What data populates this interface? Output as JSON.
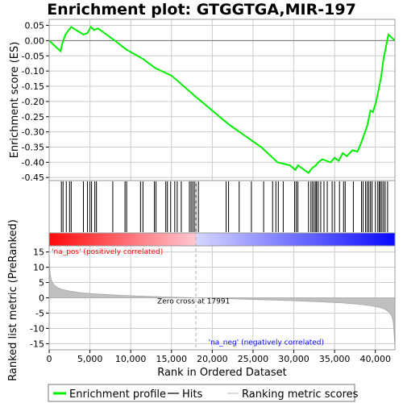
{
  "chart_data": {
    "type": "line",
    "title": "Enrichment plot: GTGGTGA,MIR-197",
    "es_panel": {
      "ylabel": "Enrichment score (ES)",
      "ylim": [
        -0.46,
        0.07
      ],
      "yticks": [
        0.05,
        0.0,
        -0.05,
        -0.1,
        -0.15,
        -0.2,
        -0.25,
        -0.3,
        -0.35,
        -0.4,
        -0.45
      ],
      "ytick_labels": [
        "0.05",
        "0.00",
        "-0.05",
        "-0.10",
        "-0.15",
        "-0.20",
        "-0.25",
        "-0.30",
        "-0.35",
        "-0.40",
        "-0.45"
      ],
      "series": [
        {
          "name": "Enrichment profile",
          "color": "#00ee00",
          "x": [
            0,
            1400,
            1600,
            2000,
            2400,
            2700,
            4200,
            4700,
            5100,
            5500,
            6000,
            7800,
            9500,
            11500,
            13000,
            15000,
            18000,
            22000,
            26000,
            28000,
            29500,
            30200,
            30500,
            31800,
            32200,
            32700,
            33000,
            33500,
            34500,
            35000,
            35500,
            36000,
            36500,
            37200,
            37800,
            38200,
            38600,
            39000,
            39400,
            39700,
            40100,
            40400,
            40700,
            41000,
            41300,
            41600,
            42400
          ],
          "y": [
            0.0,
            -0.035,
            -0.01,
            0.02,
            0.035,
            0.045,
            0.02,
            0.025,
            0.045,
            0.035,
            0.04,
            0.005,
            -0.03,
            -0.06,
            -0.09,
            -0.115,
            -0.185,
            -0.275,
            -0.35,
            -0.4,
            -0.41,
            -0.425,
            -0.41,
            -0.435,
            -0.42,
            -0.41,
            -0.4,
            -0.39,
            -0.4,
            -0.385,
            -0.395,
            -0.37,
            -0.38,
            -0.36,
            -0.365,
            -0.34,
            -0.31,
            -0.28,
            -0.23,
            -0.235,
            -0.2,
            -0.16,
            -0.12,
            -0.06,
            -0.02,
            0.02,
            0.0
          ]
        }
      ]
    },
    "hits": [
      1500,
      1700,
      2100,
      2500,
      2700,
      4200,
      4700,
      5000,
      5200,
      5600,
      5800,
      7800,
      9300,
      9500,
      11200,
      11500,
      12900,
      13100,
      14300,
      14500,
      14900,
      15400,
      15700,
      16200,
      17200,
      17400,
      17600,
      17800,
      18000,
      18300,
      21700,
      22000,
      23300,
      24800,
      26300,
      27400,
      27800,
      28100,
      28700,
      30100,
      30300,
      30500,
      31800,
      32100,
      32300,
      32500,
      32700,
      32800,
      33000,
      33300,
      33700,
      34100,
      34700,
      35000,
      35600,
      36100,
      36300,
      37300,
      38300,
      38500,
      38800,
      39000,
      39200,
      39400,
      39600,
      40000,
      40300,
      40500,
      40600,
      40800,
      41000,
      41200,
      41500
    ],
    "rank_panel": {
      "ylabel": "Ranked list metric (PreRanked)",
      "ylim": [
        -17,
        17
      ],
      "yticks": [
        15,
        10,
        5,
        0,
        -5,
        -10,
        -15
      ],
      "ytick_labels": [
        "15",
        "10",
        "5",
        "0",
        "-5",
        "-10",
        "-15"
      ],
      "profile_x": [
        0,
        100,
        300,
        600,
        1000,
        1500,
        2500,
        4000,
        6000,
        9000,
        13000,
        17991,
        22000,
        26000,
        30000,
        33000,
        36000,
        38000,
        39500,
        40500,
        41200,
        41700,
        42000,
        42200,
        42400
      ],
      "profile_y": [
        15,
        8,
        5.5,
        4.2,
        3.4,
        2.8,
        2.2,
        1.6,
        1.2,
        0.8,
        0.4,
        0.0,
        -0.3,
        -0.6,
        -0.95,
        -1.3,
        -1.7,
        -2.1,
        -2.6,
        -3.1,
        -3.8,
        -4.7,
        -6.0,
        -8.0,
        -16.0
      ],
      "zero_cross_label": "Zero cross at 17991",
      "zero_cross": 17991,
      "pos_label": "'na_pos' (positively correlated)",
      "neg_label": "'na_neg' (negatively correlated)"
    },
    "xlabel": "Rank in Ordered Dataset",
    "xlim": [
      0,
      42400
    ],
    "xticks": [
      0,
      5000,
      10000,
      15000,
      20000,
      25000,
      30000,
      35000,
      40000
    ],
    "xtick_labels": [
      "0",
      "5,000",
      "10,000",
      "15,000",
      "20,000",
      "25,000",
      "30,000",
      "35,000",
      "40,000"
    ],
    "legend": {
      "placement": "bottom",
      "items": [
        {
          "label": "Enrichment profile",
          "kind": "line",
          "color": "#00ee00"
        },
        {
          "label": "Hits",
          "kind": "line",
          "color": "#000000"
        },
        {
          "label": "Ranking metric scores",
          "kind": "line",
          "color": "#c0c0c0"
        }
      ]
    },
    "colors": {
      "enrichment": "#00ee00",
      "grid": "#cccccc",
      "pos_text": "#ff0000",
      "neg_text": "#0000ff",
      "rank_fill": "#c0c0c0",
      "zero_line": "#b0b0b0"
    }
  }
}
